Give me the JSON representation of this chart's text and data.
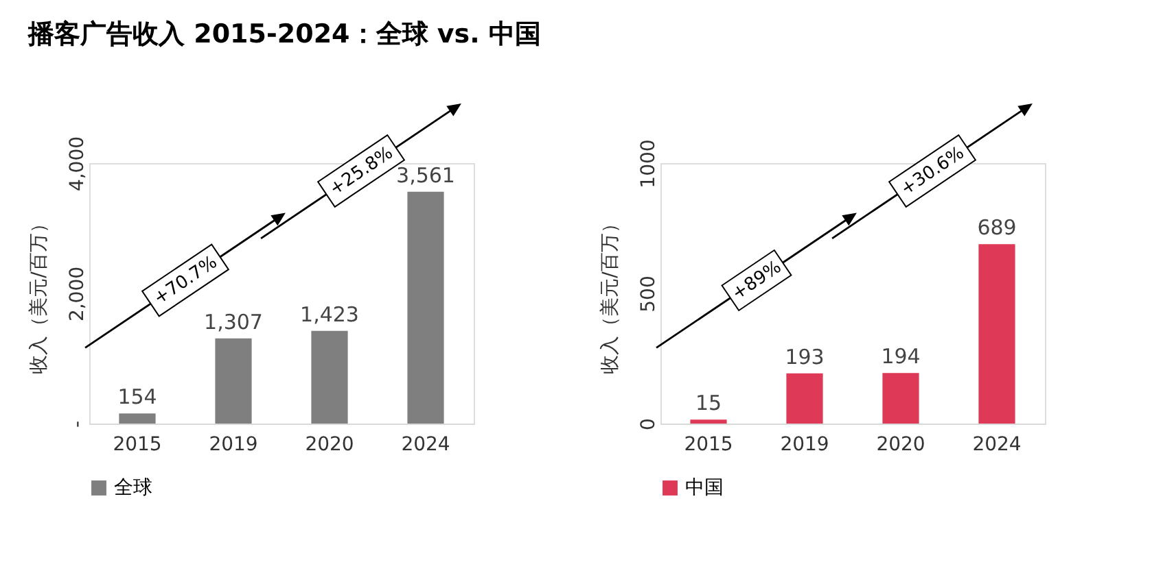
{
  "chart_data": [
    {
      "type": "bar",
      "title": "播客广告收入 2015-2024：全球 vs. 中国",
      "ylabel": "收入（美元/百万）",
      "categories": [
        "2015",
        "2019",
        "2020",
        "2024"
      ],
      "series": [
        {
          "name": "全球",
          "color": "#7f7f7f",
          "values": [
            154,
            1307,
            1423,
            3561
          ]
        }
      ],
      "ylim": [
        0,
        4000
      ],
      "yticks": [
        {
          "value": 0,
          "label": "-"
        },
        {
          "value": 2000,
          "label": "2,000"
        },
        {
          "value": 4000,
          "label": "4,000"
        }
      ],
      "value_labels": [
        "154",
        "1,307",
        "1,423",
        "3,561"
      ],
      "annotations": [
        "+70.7%",
        "+25.8%"
      ],
      "legend": "bottom",
      "grid": false
    },
    {
      "type": "bar",
      "ylabel": "收入（美元/百万）",
      "categories": [
        "2015",
        "2019",
        "2020",
        "2024"
      ],
      "series": [
        {
          "name": "中国",
          "color": "#de3a57",
          "values": [
            15,
            193,
            194,
            689
          ]
        }
      ],
      "ylim": [
        0,
        1000
      ],
      "yticks": [
        0,
        500,
        1000
      ],
      "data_labels": true,
      "annotations": [
        "+89%",
        "+30.6%"
      ],
      "legend": "bottom",
      "grid": false
    }
  ]
}
